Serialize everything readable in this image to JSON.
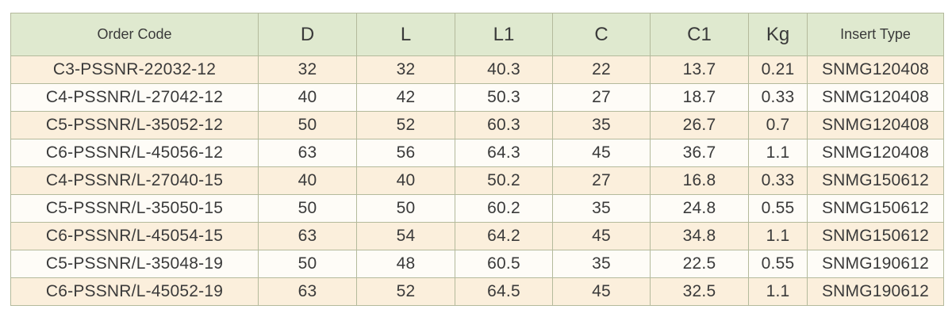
{
  "table": {
    "headers": [
      "Order Code",
      "D",
      "L",
      "L1",
      "C",
      "C1",
      "Kg",
      "Insert Type"
    ],
    "rows": [
      [
        "C3-PSSNR-22032-12",
        "32",
        "32",
        "40.3",
        "22",
        "13.7",
        "0.21",
        "SNMG120408"
      ],
      [
        "C4-PSSNR/L-27042-12",
        "40",
        "42",
        "50.3",
        "27",
        "18.7",
        "0.33",
        "SNMG120408"
      ],
      [
        "C5-PSSNR/L-35052-12",
        "50",
        "52",
        "60.3",
        "35",
        "26.7",
        "0.7",
        "SNMG120408"
      ],
      [
        "C6-PSSNR/L-45056-12",
        "63",
        "56",
        "64.3",
        "45",
        "36.7",
        "1.1",
        "SNMG120408"
      ],
      [
        "C4-PSSNR/L-27040-15",
        "40",
        "40",
        "50.2",
        "27",
        "16.8",
        "0.33",
        "SNMG150612"
      ],
      [
        "C5-PSSNR/L-35050-15",
        "50",
        "50",
        "60.2",
        "35",
        "24.8",
        "0.55",
        "SNMG150612"
      ],
      [
        "C6-PSSNR/L-45054-15",
        "63",
        "54",
        "64.2",
        "45",
        "34.8",
        "1.1",
        "SNMG150612"
      ],
      [
        "C5-PSSNR/L-35048-19",
        "50",
        "48",
        "60.5",
        "35",
        "22.5",
        "0.55",
        "SNMG190612"
      ],
      [
        "C6-PSSNR/L-45052-19",
        "63",
        "52",
        "64.5",
        "45",
        "32.5",
        "1.1",
        "SNMG190612"
      ]
    ]
  },
  "colors": {
    "header_bg": "#dfe9cf",
    "row_odd_bg": "#fbefdc",
    "row_even_bg": "#fefcf7",
    "border": "#b4ba9c",
    "text": "#3a3a3a"
  }
}
